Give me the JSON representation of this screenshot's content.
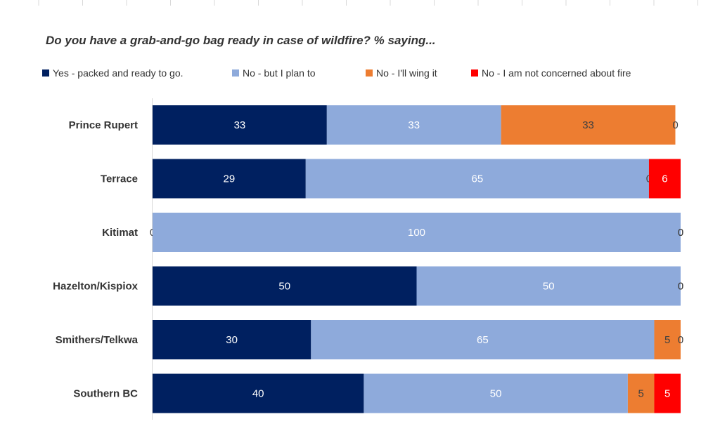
{
  "chart_data": {
    "type": "bar",
    "orientation": "horizontal",
    "stacked": true,
    "title": "Do you have a grab-and-go bag ready in case of wildfire? % saying...",
    "categories": [
      "Prince Rupert",
      "Terrace",
      "Kitimat",
      "Hazelton/Kispiox",
      "Smithers/Telkwa",
      "Southern BC"
    ],
    "series": [
      {
        "name": "Yes - packed and ready to go.",
        "color": "#002060",
        "label_color": "#ffffff",
        "values": [
          33,
          29,
          0,
          50,
          30,
          40
        ]
      },
      {
        "name": "No - but I plan to",
        "color": "#8eaadb",
        "label_color": "#ffffff",
        "values": [
          33,
          65,
          100,
          50,
          65,
          50
        ]
      },
      {
        "name": "No - I'll wing it",
        "color": "#ed7d31",
        "label_color": "#404040",
        "values": [
          33,
          0,
          0,
          0,
          5,
          5
        ]
      },
      {
        "name": "No - I am not concerned about fire",
        "color": "#ff0000",
        "label_color": "#ffffff",
        "values": [
          0,
          6,
          0,
          0,
          0,
          5
        ]
      }
    ],
    "xlim": [
      0,
      100
    ],
    "legend_position": "top",
    "grid": false
  }
}
